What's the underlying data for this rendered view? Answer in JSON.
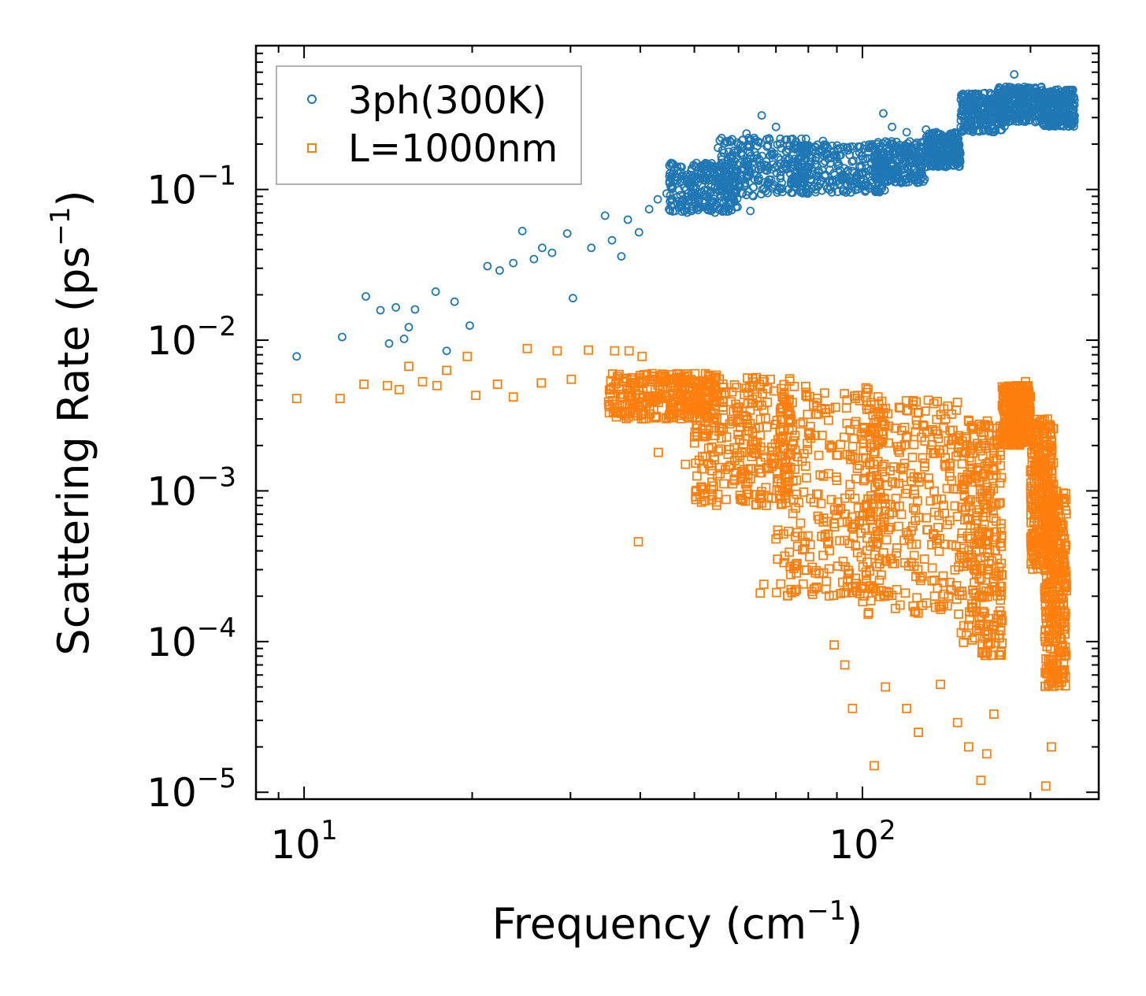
{
  "chart_data": {
    "type": "scatter",
    "title": "",
    "xlabel": "Frequency (cm",
    "xlabel_sup": "−1",
    "xlabel_end": ")",
    "ylabel": "Scattering Rate (ps",
    "ylabel_sup": "−1",
    "ylabel_end": ")",
    "xscale": "log",
    "yscale": "log",
    "xlim": [
      8.2,
      265
    ],
    "ylim": [
      9e-06,
      0.9
    ],
    "x_ticks": [
      {
        "value": 10,
        "base": "10",
        "exp": "1"
      },
      {
        "value": 100,
        "base": "10",
        "exp": "2"
      }
    ],
    "y_ticks": [
      {
        "value": 0.1,
        "base": "10",
        "exp": "−1"
      },
      {
        "value": 0.01,
        "base": "10",
        "exp": "−2"
      },
      {
        "value": 0.001,
        "base": "10",
        "exp": "−3"
      },
      {
        "value": 0.0001,
        "base": "10",
        "exp": "−4"
      },
      {
        "value": 1e-05,
        "base": "10",
        "exp": "−5"
      }
    ],
    "legend_position": "top-left",
    "colors": {
      "series_1": "#1f77b4",
      "series_2": "#ff7f0e"
    },
    "series": [
      {
        "name": "3ph(300K)",
        "marker": "circle",
        "color": "#1f77b4",
        "points": [
          [
            9.7,
            0.0078
          ],
          [
            11.7,
            0.0105
          ],
          [
            12.9,
            0.0195
          ],
          [
            13.7,
            0.0158
          ],
          [
            14.2,
            0.0095
          ],
          [
            14.6,
            0.0165
          ],
          [
            15.1,
            0.0102
          ],
          [
            15.4,
            0.0122
          ],
          [
            15.8,
            0.016
          ],
          [
            17.2,
            0.021
          ],
          [
            18.0,
            0.0085
          ],
          [
            18.6,
            0.018
          ],
          [
            19.8,
            0.0125
          ],
          [
            21.3,
            0.031
          ],
          [
            22.4,
            0.029
          ],
          [
            23.7,
            0.0325
          ],
          [
            24.6,
            0.053
          ],
          [
            25.8,
            0.0345
          ],
          [
            26.7,
            0.041
          ],
          [
            27.8,
            0.038
          ],
          [
            29.6,
            0.051
          ],
          [
            30.3,
            0.019
          ],
          [
            32.7,
            0.041
          ],
          [
            34.6,
            0.067
          ],
          [
            35.6,
            0.046
          ],
          [
            37.0,
            0.036
          ],
          [
            38.0,
            0.063
          ],
          [
            39.8,
            0.052
          ],
          [
            41.5,
            0.074
          ],
          [
            43.0,
            0.086
          ],
          [
            44.6,
            0.094
          ],
          [
            46.2,
            0.072
          ],
          [
            48.0,
            0.103
          ],
          [
            50.0,
            0.095
          ],
          [
            52.0,
            0.115
          ],
          [
            54.0,
            0.125
          ],
          [
            56.0,
            0.15
          ],
          [
            58.0,
            0.165
          ],
          [
            60.0,
            0.2
          ],
          [
            62.0,
            0.235
          ],
          [
            64.0,
            0.22
          ],
          [
            66.0,
            0.31
          ],
          [
            63.0,
            0.072
          ],
          [
            67.0,
            0.135
          ],
          [
            70.0,
            0.26
          ],
          [
            74.0,
            0.16
          ],
          [
            78.0,
            0.15
          ],
          [
            85.0,
            0.21
          ],
          [
            92.0,
            0.125
          ],
          [
            100.0,
            0.13
          ],
          [
            109.0,
            0.32
          ],
          [
            113.0,
            0.26
          ],
          [
            120.0,
            0.24
          ],
          [
            130.0,
            0.25
          ],
          [
            150.0,
            0.26
          ],
          [
            160.0,
            0.36
          ],
          [
            175.0,
            0.46
          ],
          [
            187.0,
            0.58
          ],
          [
            200.0,
            0.35
          ],
          [
            215.0,
            0.43
          ],
          [
            230.0,
            0.39
          ]
        ],
        "band": [
          {
            "x": [
              45,
              60
            ],
            "y": [
              0.07,
              0.15
            ]
          },
          {
            "x": [
              55,
              80
            ],
            "y": [
              0.09,
              0.22
            ]
          },
          {
            "x": [
              75,
              110
            ],
            "y": [
              0.095,
              0.2
            ]
          },
          {
            "x": [
              105,
              130
            ],
            "y": [
              0.11,
              0.21
            ]
          },
          {
            "x": [
              130,
              150
            ],
            "y": [
              0.14,
              0.24
            ]
          },
          {
            "x": [
              150,
              180
            ],
            "y": [
              0.24,
              0.44
            ]
          },
          {
            "x": [
              175,
              210
            ],
            "y": [
              0.28,
              0.48
            ]
          },
          {
            "x": [
              210,
              240
            ],
            "y": [
              0.26,
              0.46
            ]
          }
        ]
      },
      {
        "name": "L=1000nm",
        "marker": "square",
        "color": "#ff7f0e",
        "points": [
          [
            9.7,
            0.0041
          ],
          [
            11.6,
            0.0041
          ],
          [
            12.8,
            0.0051
          ],
          [
            14.1,
            0.005
          ],
          [
            14.8,
            0.0047
          ],
          [
            15.4,
            0.0067
          ],
          [
            16.3,
            0.0053
          ],
          [
            17.3,
            0.005
          ],
          [
            18.0,
            0.0063
          ],
          [
            19.6,
            0.0078
          ],
          [
            20.3,
            0.0043
          ],
          [
            22.2,
            0.0051
          ],
          [
            23.7,
            0.0042
          ],
          [
            25.1,
            0.0088
          ],
          [
            26.6,
            0.0052
          ],
          [
            28.4,
            0.0085
          ],
          [
            30.1,
            0.0055
          ],
          [
            32.3,
            0.0086
          ],
          [
            36.0,
            0.0085
          ],
          [
            38.2,
            0.0085
          ],
          [
            40.3,
            0.0078
          ],
          [
            42.0,
            0.006
          ],
          [
            39.7,
            0.00046
          ],
          [
            43.1,
            0.0018
          ],
          [
            48.2,
            0.0015
          ],
          [
            55.6,
            0.0013
          ],
          [
            60.7,
            0.00089
          ],
          [
            65.6,
            0.00021
          ],
          [
            66.6,
            0.00024
          ],
          [
            70.0,
            0.00048
          ],
          [
            78.0,
            0.0005
          ],
          [
            89.0,
            9.5e-05
          ],
          [
            93.0,
            7e-05
          ],
          [
            96.0,
            3.6e-05
          ],
          [
            105.0,
            1.5e-05
          ],
          [
            110.0,
            5e-05
          ],
          [
            120.0,
            3.6e-05
          ],
          [
            126.0,
            2.5e-05
          ],
          [
            138.0,
            5.2e-05
          ],
          [
            148.0,
            2.9e-05
          ],
          [
            155.0,
            2e-05
          ],
          [
            163.0,
            1.2e-05
          ],
          [
            167.0,
            1.8e-05
          ],
          [
            172.0,
            3.3e-05
          ],
          [
            178.0,
            0.0049
          ],
          [
            196.0,
            0.0053
          ],
          [
            205.0,
            0.00038
          ],
          [
            213.0,
            1.1e-05
          ],
          [
            218.0,
            2e-05
          ],
          [
            225.0,
            0.00012
          ],
          [
            230.0,
            8e-05
          ]
        ],
        "band": [
          {
            "x": [
              35,
              55
            ],
            "y": [
              0.003,
              0.006
            ]
          },
          {
            "x": [
              50,
              75
            ],
            "y": [
              0.0008,
              0.006
            ]
          },
          {
            "x": [
              70,
              110
            ],
            "y": [
              0.0002,
              0.005
            ]
          },
          {
            "x": [
              100,
              150
            ],
            "y": [
              0.00015,
              0.004
            ]
          },
          {
            "x": [
              150,
              178
            ],
            "y": [
              8e-05,
              0.003
            ]
          },
          {
            "x": [
              178,
              200
            ],
            "y": [
              0.002,
              0.005
            ]
          },
          {
            "x": [
              200,
              220
            ],
            "y": [
              0.0003,
              0.003
            ]
          },
          {
            "x": [
              212,
              232
            ],
            "y": [
              5e-05,
              0.001
            ]
          }
        ]
      }
    ]
  }
}
